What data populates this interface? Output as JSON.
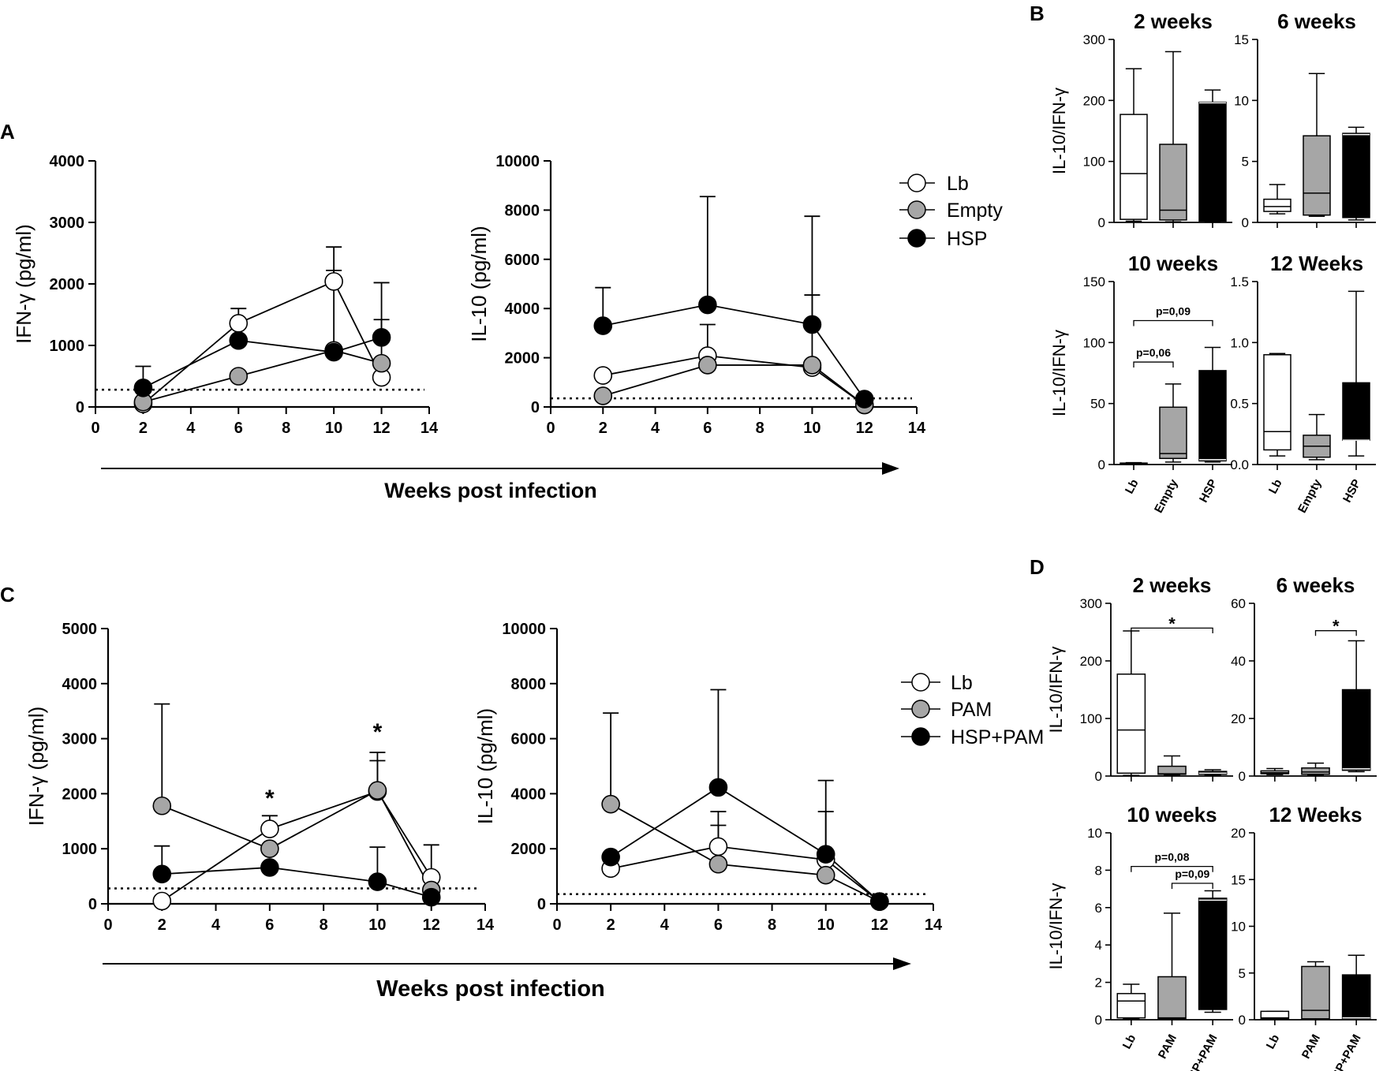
{
  "chart_data": [
    {
      "id": "A1",
      "type": "line",
      "panel_letter": "A",
      "ylabel": "IFN-γ (pg/ml)",
      "ylim": [
        0,
        4000
      ],
      "yticks": [
        0,
        1000,
        2000,
        3000,
        4000
      ],
      "xlim": [
        0,
        14
      ],
      "xticks": [
        0,
        2,
        4,
        6,
        8,
        10,
        12,
        14
      ],
      "baseline": 280,
      "series": [
        {
          "name": "Lb",
          "style": "white",
          "x": [
            2,
            6,
            10,
            12
          ],
          "y": [
            50,
            1360,
            2040,
            480
          ],
          "err": [
            0,
            1600,
            2600,
            0
          ]
        },
        {
          "name": "Empty",
          "style": "gray",
          "x": [
            2,
            6,
            10,
            12
          ],
          "y": [
            80,
            500,
            920,
            710
          ],
          "err": [
            0,
            0,
            2220,
            1420
          ]
        },
        {
          "name": "HSP",
          "style": "black",
          "x": [
            2,
            6,
            10,
            12
          ],
          "y": [
            310,
            1080,
            890,
            1130
          ],
          "err": [
            660,
            0,
            0,
            2020
          ]
        }
      ],
      "stars": []
    },
    {
      "id": "A2",
      "type": "line",
      "ylabel": "IL-10 (pg/ml)",
      "ylim": [
        0,
        10000
      ],
      "yticks": [
        0,
        2000,
        4000,
        6000,
        8000,
        10000
      ],
      "xlim": [
        0,
        14
      ],
      "xticks": [
        0,
        2,
        4,
        6,
        8,
        10,
        12,
        14
      ],
      "baseline": 350,
      "series": [
        {
          "name": "Lb",
          "style": "white",
          "x": [
            2,
            6,
            10,
            12
          ],
          "y": [
            1280,
            2080,
            1600,
            80
          ],
          "err": [
            0,
            3350,
            0,
            0
          ]
        },
        {
          "name": "Empty",
          "style": "gray",
          "x": [
            2,
            6,
            10,
            12
          ],
          "y": [
            450,
            1700,
            1700,
            80
          ],
          "err": [
            0,
            0,
            4550,
            0
          ]
        },
        {
          "name": "HSP",
          "style": "black",
          "x": [
            2,
            6,
            10,
            12
          ],
          "y": [
            3300,
            4150,
            3350,
            320
          ],
          "err": [
            4850,
            8550,
            7750,
            0
          ]
        }
      ],
      "stars": []
    },
    {
      "id": "C1",
      "type": "line",
      "panel_letter": "C",
      "ylabel": "IFN-γ (pg/ml)",
      "ylim": [
        0,
        5000
      ],
      "yticks": [
        0,
        1000,
        2000,
        3000,
        4000,
        5000
      ],
      "xlim": [
        0,
        14
      ],
      "xticks": [
        0,
        2,
        4,
        6,
        8,
        10,
        12,
        14
      ],
      "baseline": 280,
      "series": [
        {
          "name": "Lb",
          "style": "white",
          "x": [
            2,
            6,
            10,
            12
          ],
          "y": [
            50,
            1360,
            2040,
            480
          ],
          "err": [
            0,
            1600,
            2600,
            1070
          ]
        },
        {
          "name": "PAM",
          "style": "gray",
          "x": [
            2,
            6,
            10,
            12
          ],
          "y": [
            1780,
            1000,
            2060,
            250
          ],
          "err": [
            3630,
            0,
            2750,
            0
          ]
        },
        {
          "name": "HSP+PAM",
          "style": "black",
          "x": [
            2,
            6,
            10,
            12
          ],
          "y": [
            540,
            660,
            400,
            120
          ],
          "err": [
            1050,
            0,
            1030,
            0
          ]
        }
      ],
      "stars": [
        {
          "x": 6,
          "y": 1950,
          "text": "*"
        },
        {
          "x": 10,
          "y": 3150,
          "text": "*"
        }
      ]
    },
    {
      "id": "C2",
      "type": "line",
      "ylabel": "IL-10 (pg/ml)",
      "ylim": [
        0,
        10000
      ],
      "yticks": [
        0,
        2000,
        4000,
        6000,
        8000,
        10000
      ],
      "xlim": [
        0,
        14
      ],
      "xticks": [
        0,
        2,
        4,
        6,
        8,
        10,
        12,
        14
      ],
      "baseline": 350,
      "series": [
        {
          "name": "Lb",
          "style": "white",
          "x": [
            2,
            6,
            10,
            12
          ],
          "y": [
            1280,
            2080,
            1600,
            80
          ],
          "err": [
            0,
            3350,
            0,
            0
          ]
        },
        {
          "name": "PAM",
          "style": "gray",
          "x": [
            2,
            6,
            10,
            12
          ],
          "y": [
            3620,
            1440,
            1040,
            80
          ],
          "err": [
            6930,
            2850,
            3350,
            0
          ]
        },
        {
          "name": "HSP+PAM",
          "style": "black",
          "x": [
            2,
            6,
            10,
            12
          ],
          "y": [
            1700,
            4230,
            1800,
            80
          ],
          "err": [
            0,
            7780,
            4480,
            0
          ]
        }
      ],
      "stars": []
    },
    {
      "id": "B1",
      "type": "box",
      "panel_letter": "B",
      "title": "2 weeks",
      "ylabel": "IL-10/IFN-γ",
      "ylim": [
        0,
        300
      ],
      "yticks": [
        "0",
        "100",
        "200",
        "300"
      ],
      "categories": [
        "Lb",
        "Empty",
        "HSP"
      ],
      "show_xlabels": false,
      "boxes": [
        {
          "fill": "white",
          "min": 2,
          "q1": 5,
          "median": 80,
          "q3": 177,
          "max": 252
        },
        {
          "fill": "gray",
          "min": 1,
          "q1": 4,
          "median": 20,
          "q3": 128,
          "max": 280
        },
        {
          "fill": "black",
          "min": 1,
          "q1": 2,
          "median": 196,
          "q3": 197,
          "max": 217
        }
      ],
      "annotations": []
    },
    {
      "id": "B2",
      "type": "box",
      "title": "6 weeks",
      "ylabel": "",
      "ylim": [
        0,
        15
      ],
      "yticks": [
        "0",
        "5",
        "10",
        "15"
      ],
      "categories": [
        "Lb",
        "Empty",
        "HSP"
      ],
      "show_xlabels": false,
      "boxes": [
        {
          "fill": "white",
          "min": 0.7,
          "q1": 0.9,
          "median": 1.3,
          "q3": 1.9,
          "max": 3.1
        },
        {
          "fill": "gray",
          "min": 0.5,
          "q1": 0.6,
          "median": 2.4,
          "q3": 7.1,
          "max": 12.2
        },
        {
          "fill": "black",
          "min": 0.2,
          "q1": 0.4,
          "median": 7.2,
          "q3": 7.3,
          "max": 7.8
        }
      ],
      "annotations": []
    },
    {
      "id": "B3",
      "type": "box",
      "title": "10 weeks",
      "ylabel": "IL-10/IFN-γ",
      "ylim": [
        0,
        150
      ],
      "yticks": [
        "0",
        "50",
        "100",
        "150"
      ],
      "categories": [
        "Lb",
        "Empty",
        "HSP"
      ],
      "show_xlabels": true,
      "boxes": [
        {
          "fill": "white",
          "min": 0,
          "q1": 0.3,
          "median": 0.8,
          "q3": 1.2,
          "max": 1.5
        },
        {
          "fill": "gray",
          "min": 2,
          "q1": 5,
          "median": 9,
          "q3": 47,
          "max": 66
        },
        {
          "fill": "black",
          "min": 2,
          "q1": 3,
          "median": 4,
          "q3": 77,
          "max": 96
        }
      ],
      "annotations": [
        {
          "from": 0,
          "to": 1,
          "y": 84,
          "label": "p=0,06",
          "ticks": true
        },
        {
          "from": 0,
          "to": 2,
          "y": 118,
          "label": "p=0,09",
          "ticks": true
        }
      ]
    },
    {
      "id": "B4",
      "type": "box",
      "title": "12 Weeks",
      "ylabel": "",
      "ylim": [
        0,
        1.5
      ],
      "yticks": [
        "0.0",
        "0.5",
        "1.0",
        "1.5"
      ],
      "categories": [
        "Lb",
        "Empty",
        "HSP"
      ],
      "show_xlabels": true,
      "boxes": [
        {
          "fill": "white",
          "min": 0.07,
          "q1": 0.12,
          "median": 0.27,
          "q3": 0.9,
          "max": 0.91
        },
        {
          "fill": "gray",
          "min": 0.04,
          "q1": 0.06,
          "median": 0.15,
          "q3": 0.24,
          "max": 0.41
        },
        {
          "fill": "black",
          "min": 0.07,
          "q1": 0.2,
          "median": 0.2,
          "q3": 0.67,
          "max": 1.42
        }
      ],
      "annotations": []
    },
    {
      "id": "D1",
      "type": "box",
      "panel_letter": "D",
      "title": "2 weeks",
      "ylabel": "IL-10/IFN-γ",
      "ylim": [
        0,
        300
      ],
      "yticks": [
        "0",
        "100",
        "200",
        "300"
      ],
      "categories": [
        "Lb",
        "PAM",
        "HSP+PAM"
      ],
      "show_xlabels": false,
      "boxes": [
        {
          "fill": "white",
          "min": 1,
          "q1": 5,
          "median": 80,
          "q3": 177,
          "max": 252
        },
        {
          "fill": "gray",
          "min": 1,
          "q1": 3,
          "median": 4,
          "q3": 17,
          "max": 35
        },
        {
          "fill": "black",
          "min": 1,
          "q1": 3,
          "median": 5,
          "q3": 8,
          "max": 11
        }
      ],
      "annotations": [
        {
          "from": 0,
          "to": 2,
          "y": 257,
          "label": "*",
          "ticks": true
        }
      ]
    },
    {
      "id": "D2",
      "type": "box",
      "title": "6 weeks",
      "ylabel": "",
      "ylim": [
        0,
        60
      ],
      "yticks": [
        "0",
        "20",
        "40",
        "60"
      ],
      "categories": [
        "Lb",
        "PAM",
        "HSP+PAM"
      ],
      "show_xlabels": false,
      "boxes": [
        {
          "fill": "white",
          "min": 0.5,
          "q1": 0.8,
          "median": 1.2,
          "q3": 1.8,
          "max": 2.6
        },
        {
          "fill": "gray",
          "min": 0.3,
          "q1": 0.6,
          "median": 1.4,
          "q3": 2.8,
          "max": 4.5
        },
        {
          "fill": "black",
          "min": 1.5,
          "q1": 2,
          "median": 2.5,
          "q3": 30,
          "max": 47
        }
      ],
      "annotations": [
        {
          "from": 1,
          "to": 2,
          "y": 50.5,
          "label": "*",
          "ticks": true
        }
      ]
    },
    {
      "id": "D3",
      "type": "box",
      "title": "10 weeks",
      "ylabel": "IL-10/IFN-γ",
      "ylim": [
        0,
        10
      ],
      "yticks": [
        "0",
        "2",
        "4",
        "6",
        "8",
        "10"
      ],
      "categories": [
        "Lb",
        "PAM",
        "HSP+PAM"
      ],
      "show_xlabels": true,
      "boxes": [
        {
          "fill": "white",
          "min": 0.05,
          "q1": 0.1,
          "median": 1.0,
          "q3": 1.4,
          "max": 1.9
        },
        {
          "fill": "gray",
          "min": 0.02,
          "q1": 0.05,
          "median": 0.1,
          "q3": 2.3,
          "max": 5.7
        },
        {
          "fill": "black",
          "min": 0.4,
          "q1": 0.55,
          "median": 6.4,
          "q3": 6.5,
          "max": 6.9
        }
      ],
      "annotations": [
        {
          "from": 0,
          "to": 2,
          "y": 8.2,
          "label": "p=0,08",
          "ticks": true
        },
        {
          "from": 1,
          "to": 2,
          "y": 7.3,
          "label": "p=0,09",
          "ticks": true
        }
      ]
    },
    {
      "id": "D4",
      "type": "box",
      "title": "12 Weeks",
      "ylabel": "",
      "ylim": [
        0,
        20
      ],
      "yticks": [
        "0",
        "5",
        "10",
        "15",
        "20"
      ],
      "categories": [
        "Lb",
        "PAM",
        "HSP+PAM"
      ],
      "show_xlabels": true,
      "boxes": [
        {
          "fill": "white",
          "min": 0.05,
          "q1": 0.1,
          "median": 0.2,
          "q3": 0.9,
          "max": 0.9
        },
        {
          "fill": "gray",
          "min": 0.05,
          "q1": 0.1,
          "median": 1.0,
          "q3": 5.7,
          "max": 6.2
        },
        {
          "fill": "black",
          "min": 0.05,
          "q1": 0.1,
          "median": 0.2,
          "q3": 4.8,
          "max": 6.9
        }
      ],
      "annotations": []
    }
  ],
  "legends": [
    {
      "items": [
        {
          "name": "Lb",
          "style": "white"
        },
        {
          "name": "Empty",
          "style": "gray"
        },
        {
          "name": "HSP",
          "style": "black"
        }
      ]
    },
    {
      "items": [
        {
          "name": "Lb",
          "style": "white"
        },
        {
          "name": "PAM",
          "style": "gray"
        },
        {
          "name": "HSP+PAM",
          "style": "black"
        }
      ]
    }
  ],
  "xlabel": "Weeks post infection",
  "colors": {
    "white": "#ffffff",
    "gray": "#a6a6a6",
    "black": "#000000",
    "line": "#000000"
  }
}
